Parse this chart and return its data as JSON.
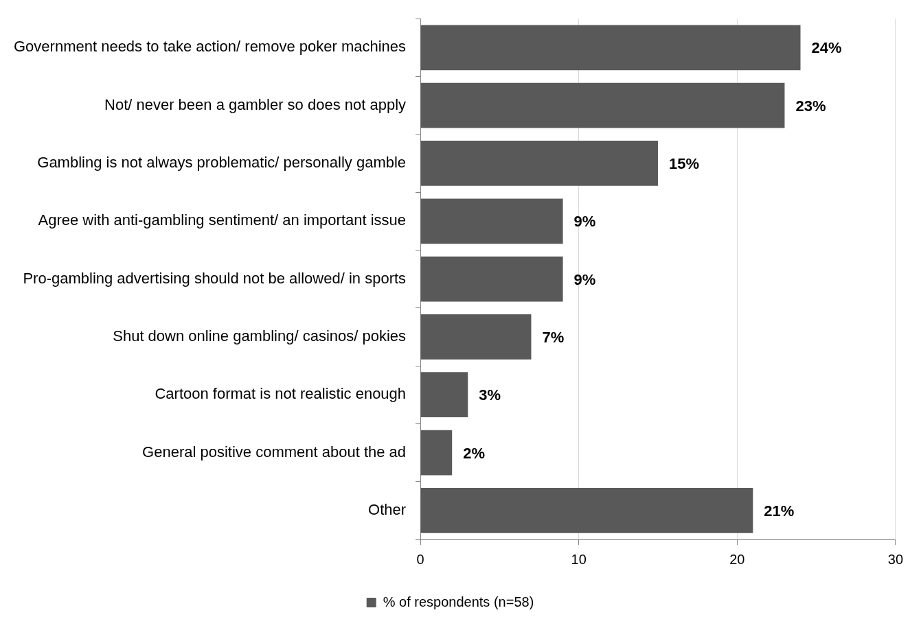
{
  "chart_data": {
    "type": "bar",
    "orientation": "horizontal",
    "categories": [
      "Government needs to take action/ remove poker machines",
      "Not/ never been a gambler so does not apply",
      "Gambling is not always problematic/ personally gamble",
      "Agree with anti-gambling sentiment/ an important issue",
      "Pro-gambling advertising should not be allowed/ in sports",
      "Shut down online gambling/ casinos/ pokies",
      "Cartoon format is not realistic enough",
      "General positive comment about the ad",
      "Other"
    ],
    "series": [
      {
        "name": "% of respondents (n=58)",
        "color": "#595959",
        "values": [
          24,
          23,
          15,
          9,
          9,
          7,
          3,
          2,
          21
        ],
        "value_labels": [
          "24%",
          "23%",
          "15%",
          "9%",
          "9%",
          "7%",
          "3%",
          "2%",
          "21%"
        ]
      }
    ],
    "xlim": [
      0,
      30
    ],
    "xticks": [
      0,
      10,
      20,
      30
    ],
    "grid": "x",
    "legend": "bottom"
  }
}
